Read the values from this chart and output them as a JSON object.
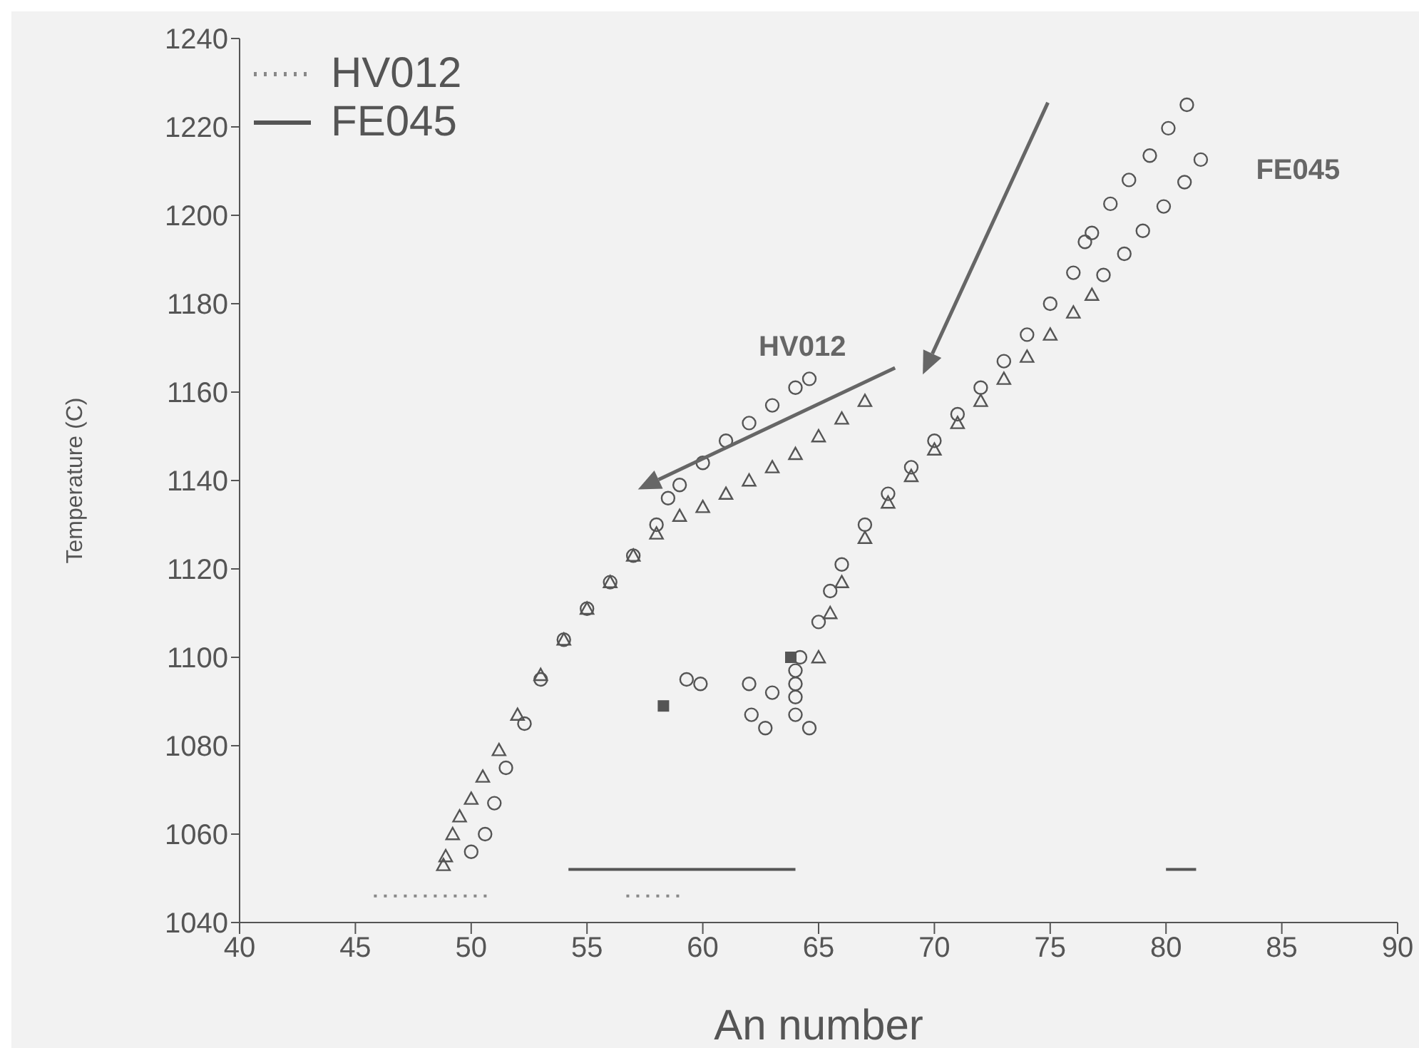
{
  "chart_data": {
    "type": "scatter",
    "xlabel": "An number",
    "ylabel": "Temperature (C)",
    "xlim": [
      40,
      90
    ],
    "ylim": [
      1040,
      1240
    ],
    "xticks": [
      40,
      45,
      50,
      55,
      60,
      65,
      70,
      75,
      80,
      85,
      90
    ],
    "yticks": [
      1040,
      1060,
      1080,
      1100,
      1120,
      1140,
      1160,
      1180,
      1200,
      1220,
      1240
    ],
    "legend": "top left",
    "series": [
      {
        "name": "HV012",
        "type": "line",
        "line_style": "dotted",
        "marker": "none",
        "color": "#888888",
        "x": [
          45.8,
          50.8,
          53.8,
          56.7,
          59.0
        ],
        "values": [
          1046,
          1046,
          null,
          1046,
          1046
        ]
      },
      {
        "name": "FE045",
        "type": "line",
        "line_style": "solid",
        "marker": "none",
        "color": "#555555",
        "x": [
          54.2,
          64.0,
          72.0,
          80.0,
          81.3
        ],
        "values": [
          1052,
          1052,
          null,
          1052,
          1052
        ]
      },
      {
        "marker": "circle",
        "color": "#555555",
        "x": [
          50,
          50.6,
          51,
          51.5,
          52.3,
          53,
          54,
          55,
          56,
          57,
          58,
          58.5,
          59,
          60,
          61,
          62,
          63,
          64,
          64.6
        ],
        "values": [
          1056,
          1060,
          1067,
          1075,
          1085,
          1095,
          1104,
          1111,
          1117,
          1123,
          1130,
          1136,
          1139,
          1144,
          1149,
          1153,
          1157,
          1161,
          1163
        ]
      },
      {
        "marker": "triangle",
        "color": "#555555",
        "x": [
          48.8,
          48.9,
          49.2,
          49.5,
          50,
          50.5,
          51.2,
          52,
          53,
          54,
          55,
          56,
          57,
          58,
          59,
          60,
          61,
          62,
          63,
          64,
          65,
          66,
          67
        ],
        "values": [
          1053,
          1055,
          1060,
          1064,
          1068,
          1073,
          1079,
          1087,
          1096,
          1104,
          1111,
          1117,
          1123,
          1128,
          1132,
          1134,
          1137,
          1140,
          1143,
          1146,
          1150,
          1154,
          1158
        ]
      },
      {
        "marker": "circle",
        "color": "#555555",
        "x": [
          64.2,
          65,
          65.5,
          66,
          67,
          68,
          69,
          70,
          71,
          72,
          73,
          74,
          75,
          76,
          76.5
        ],
        "values": [
          1100,
          1108,
          1115,
          1121,
          1130,
          1137,
          1143,
          1149,
          1155,
          1161,
          1167,
          1173,
          1180,
          1187,
          1194
        ]
      },
      {
        "marker": "triangle",
        "color": "#555555",
        "x": [
          65,
          65.5,
          66,
          67,
          68,
          69,
          70,
          71,
          72,
          73,
          74,
          75,
          76,
          76.8
        ],
        "values": [
          1100,
          1110,
          1117,
          1127,
          1135,
          1141,
          1147,
          1153,
          1158,
          1163,
          1168,
          1173,
          1178,
          1182
        ]
      },
      {
        "marker": "circle",
        "color": "#555555",
        "x": [
          59.3,
          59.9,
          62.0,
          63.0,
          62.1,
          62.7,
          64.0,
          64.0,
          64.0,
          64.0,
          64.6
        ],
        "values": [
          1095,
          1094,
          1094,
          1092,
          1087,
          1084,
          1097,
          1094,
          1091,
          1087,
          1084
        ]
      },
      {
        "marker": "square",
        "color": "#555555",
        "x": [
          58.3,
          63.8
        ],
        "values": [
          1089,
          1100
        ]
      },
      {
        "marker": "circle",
        "color": "#555555",
        "x": [
          80.9,
          79.3,
          78.4,
          77.6,
          80.1,
          76.8,
          81.5,
          80.8,
          79.9,
          79.0,
          78.2,
          77.3
        ],
        "values": [
          1225,
          1213.5,
          1208,
          1202.6,
          1219.7,
          1196,
          1212.6,
          1207.5,
          1202,
          1196.5,
          1191.3,
          1186.5
        ]
      }
    ],
    "annotations": [
      "HV012",
      "FE045"
    ]
  }
}
